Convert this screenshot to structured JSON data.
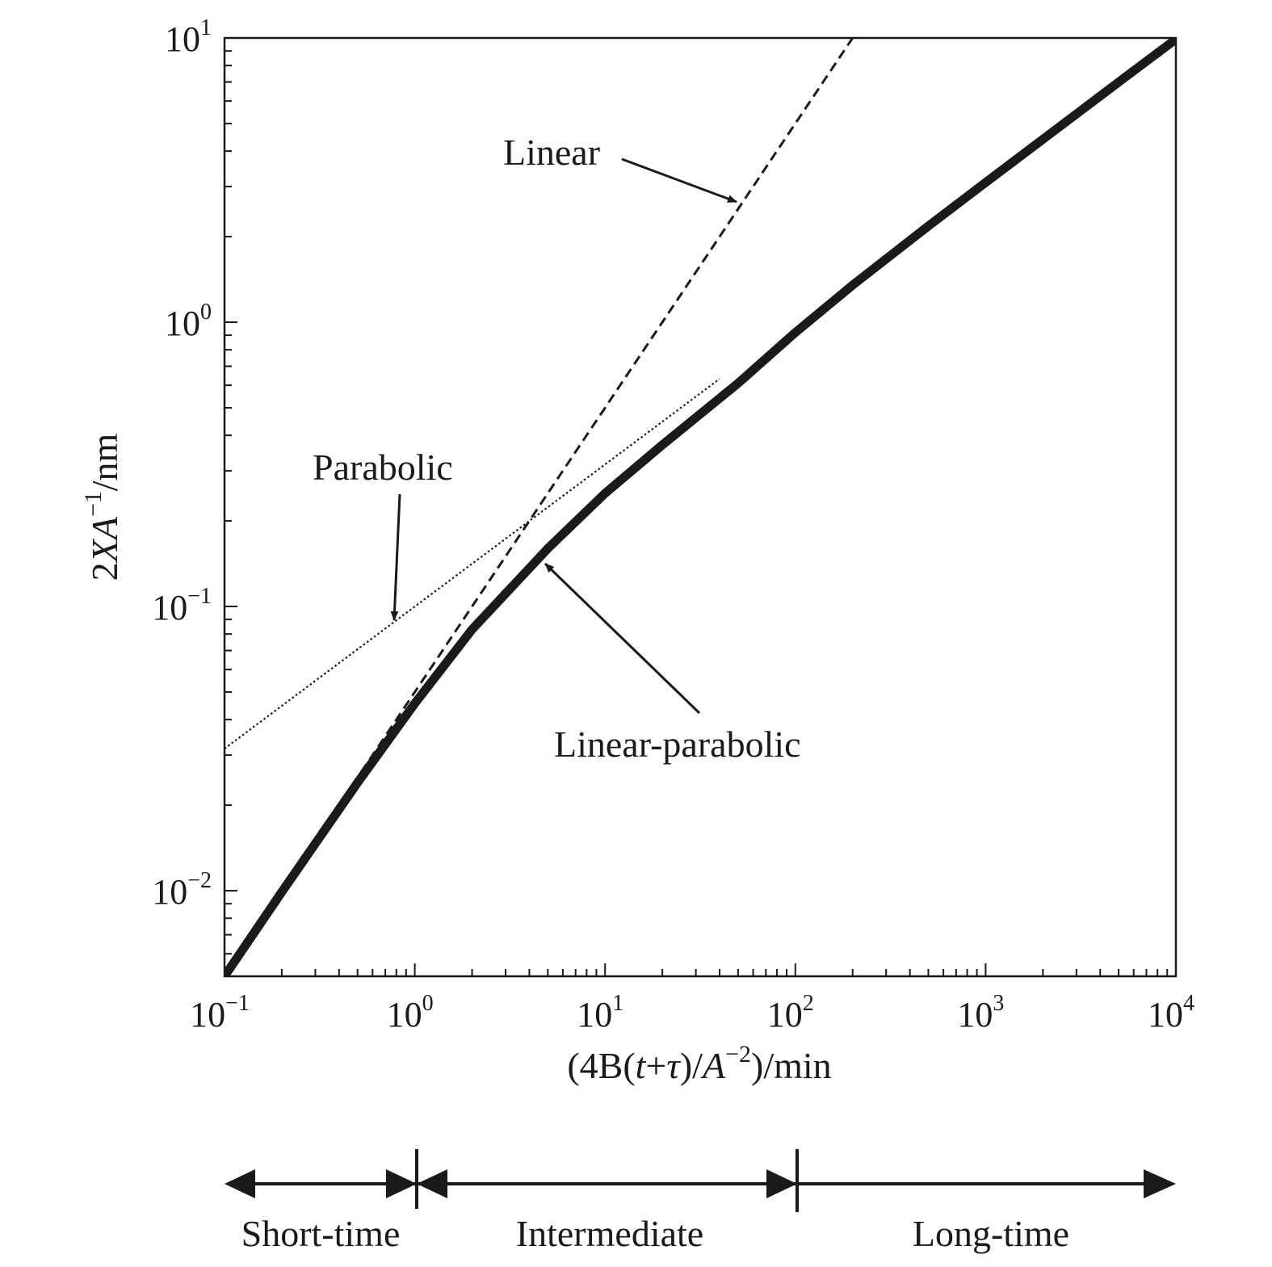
{
  "chart_data": {
    "type": "line",
    "x_scale": "log",
    "y_scale": "log",
    "xlim": [
      0.1,
      10000
    ],
    "ylim": [
      0.005,
      10
    ],
    "x_ticks": [
      {
        "value": 0.1,
        "base": "10",
        "exp": "−1"
      },
      {
        "value": 1,
        "base": "10",
        "exp": "0"
      },
      {
        "value": 10,
        "base": "10",
        "exp": "1"
      },
      {
        "value": 100,
        "base": "10",
        "exp": "2"
      },
      {
        "value": 1000,
        "base": "10",
        "exp": "3"
      },
      {
        "value": 10000,
        "base": "10",
        "exp": "4"
      }
    ],
    "y_ticks": [
      {
        "value": 0.01,
        "base": "10",
        "exp": "−2"
      },
      {
        "value": 0.1,
        "base": "10",
        "exp": "−1"
      },
      {
        "value": 1,
        "base": "10",
        "exp": "0"
      },
      {
        "value": 10,
        "base": "10",
        "exp": "1"
      }
    ],
    "xlabel": {
      "p1": "(4B(",
      "p2": "t",
      "p3": "+",
      "p4": "τ",
      "p5": ")/",
      "p6": "A",
      "p7": "−2",
      "p8": ")/min"
    },
    "ylabel": {
      "p1": "2",
      "p2": "XA",
      "p3": "−1",
      "p4": "/nm"
    },
    "series": [
      {
        "name": "Linear-parabolic",
        "style": "thick-solid",
        "x": [
          0.1,
          0.2,
          0.5,
          1,
          2,
          5,
          10,
          20,
          50,
          100,
          200,
          500,
          1000,
          2000,
          5000,
          10000
        ],
        "y": [
          0.005,
          0.0099,
          0.024,
          0.0456,
          0.083,
          0.16,
          0.25,
          0.37,
          0.61,
          0.92,
          1.35,
          2.18,
          3.1,
          4.4,
          6.99,
          9.9
        ]
      },
      {
        "name": "Linear",
        "style": "dashed",
        "x": [
          0.1,
          200
        ],
        "y": [
          0.005,
          10
        ]
      },
      {
        "name": "Parabolic",
        "style": "dotted",
        "x": [
          0.1,
          40
        ],
        "y": [
          0.0316,
          0.632
        ]
      }
    ],
    "annotations": [
      {
        "text": "Linear",
        "points_to": [
          53,
          2.6
        ]
      },
      {
        "text": "Parabolic",
        "points_to": [
          0.78,
          0.088
        ]
      },
      {
        "text": "Linear-parabolic",
        "points_to": [
          5,
          0.15
        ]
      }
    ],
    "regions": [
      {
        "label": "Short-time",
        "from": 0.1,
        "to": 1
      },
      {
        "label": "Intermediate",
        "from": 1,
        "to": 100
      },
      {
        "label": "Long-time",
        "from": 100,
        "to": 10000
      }
    ]
  }
}
